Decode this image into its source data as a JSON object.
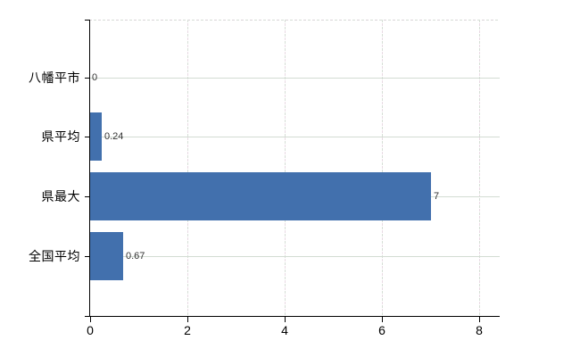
{
  "chart_data": {
    "type": "bar",
    "orientation": "horizontal",
    "title": "",
    "categories": [
      "八幡平市",
      "県平均",
      "県最大",
      "全国平均"
    ],
    "values": [
      0,
      0.24,
      7,
      0.67
    ],
    "value_labels": [
      "0",
      "0.24",
      "7",
      "0.67"
    ],
    "xticks": [
      0,
      2,
      4,
      6,
      8
    ],
    "xlim": [
      0,
      8.43
    ],
    "grid": true,
    "legend": false,
    "colors": {
      "bar": "#4270ad",
      "axis": "#000000",
      "h_gridline": "#d3dcd3",
      "value_text": "#333333",
      "label_text": "#000000"
    }
  }
}
